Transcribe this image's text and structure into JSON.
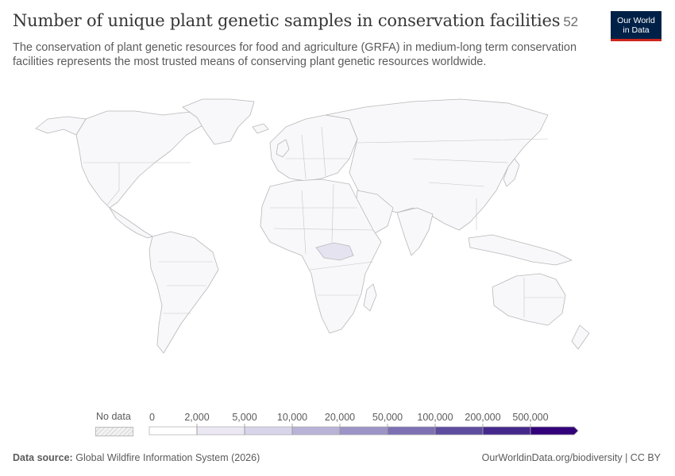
{
  "header": {
    "title": "Number of unique plant genetic samples in conservation facilities",
    "year": "52",
    "subtitle": "The conservation of plant genetic resources for food and agriculture (GRFA) in medium-long term conservation facilities represents the most trusted means of conserving plant genetic resources worldwide.",
    "logo_line1": "Our World",
    "logo_line2": "in Data"
  },
  "legend": {
    "no_data_label": "No data",
    "bins": [
      "0",
      "2,000",
      "5,000",
      "10,000",
      "20,000",
      "50,000",
      "100,000",
      "200,000",
      "500,000"
    ],
    "colors": [
      "#ffffff",
      "#ebe8f4",
      "#d8d4ea",
      "#b9b3d8",
      "#9c93c6",
      "#7d70b3",
      "#5e4c9e",
      "#45288c",
      "#32017a"
    ]
  },
  "map": {
    "land_color": "#f8f8fb",
    "border_color": "#b8b8b8",
    "highlighted_region_color": "#e6e3f1"
  },
  "footer": {
    "source_label": "Data source:",
    "source_text": "Global Wildfire Information System (2026)",
    "right_text": "OurWorldinData.org/biodiversity | CC BY"
  }
}
